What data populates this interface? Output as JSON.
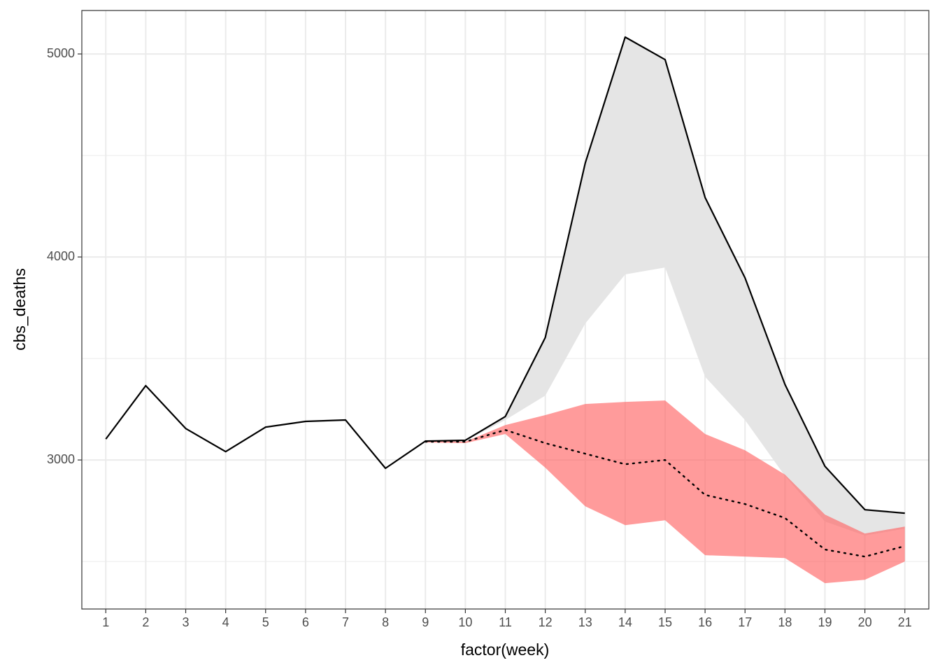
{
  "chart_data": {
    "type": "line",
    "x_label": "factor(week)",
    "y_label": "cbs_deaths",
    "categories": [
      "1",
      "2",
      "3",
      "4",
      "5",
      "6",
      "7",
      "8",
      "9",
      "10",
      "11",
      "12",
      "13",
      "14",
      "15",
      "16",
      "17",
      "18",
      "19",
      "20",
      "21"
    ],
    "ylim": [
      2266,
      5214
    ],
    "yticks": [
      3000,
      4000,
      5000
    ],
    "yminor": [
      2500,
      3500,
      4500
    ],
    "grid": true,
    "ribbons": [
      {
        "color": "#e5e5e5",
        "opacity": 1,
        "upper": [
          null,
          null,
          null,
          null,
          null,
          null,
          null,
          null,
          null,
          3097,
          3214,
          3603,
          4462,
          5083,
          4972,
          4293,
          3897,
          3372,
          2969,
          2755,
          2738
        ],
        "lower": [
          null,
          null,
          null,
          null,
          null,
          null,
          null,
          null,
          null,
          3093,
          3197,
          3317,
          3672,
          3914,
          3948,
          3410,
          3197,
          2921,
          2697,
          2628,
          2662
        ]
      },
      {
        "color": "#ff6666",
        "opacity": 0.65,
        "upper": [
          null,
          null,
          null,
          null,
          null,
          null,
          null,
          null,
          3093,
          3090,
          3172,
          3221,
          3276,
          3286,
          3293,
          3128,
          3048,
          2928,
          2731,
          2638,
          2672
        ],
        "lower": [
          null,
          null,
          null,
          null,
          null,
          null,
          null,
          null,
          3086,
          3083,
          3128,
          2962,
          2772,
          2679,
          2703,
          2531,
          2524,
          2517,
          2393,
          2410,
          2500
        ]
      }
    ],
    "series": [
      {
        "color": "#000000",
        "dash": "solid",
        "values": [
          3103,
          3366,
          3155,
          3041,
          3162,
          3190,
          3197,
          2959,
          3093,
          3097,
          3214,
          3603,
          4462,
          5083,
          4972,
          4293,
          3897,
          3372,
          2969,
          2755,
          2738
        ]
      },
      {
        "color": "#000000",
        "dash": "dotted",
        "values": [
          null,
          null,
          null,
          null,
          null,
          null,
          null,
          null,
          3090,
          3090,
          3148,
          3083,
          3031,
          2979,
          3000,
          2828,
          2783,
          2714,
          2559,
          2524,
          2576
        ]
      }
    ]
  }
}
